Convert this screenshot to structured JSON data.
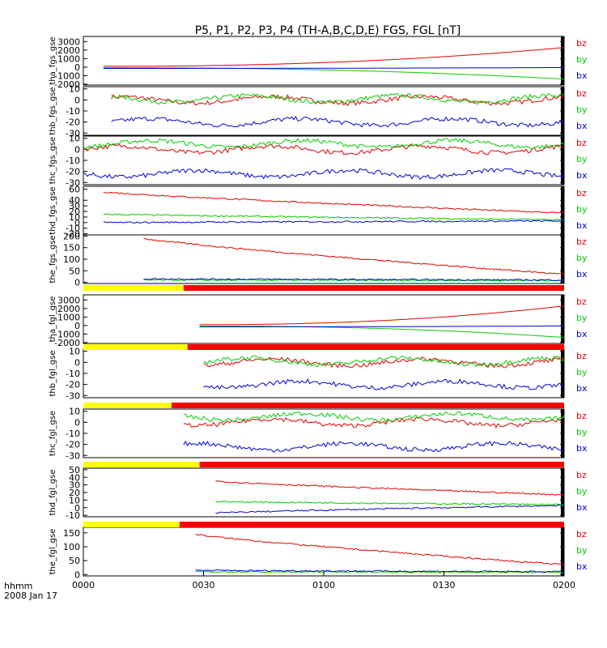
{
  "title": "P5, P1, P2, P3, P4 (TH-A,B,C,D,E) FGS, FGL [nT]",
  "date_label_top": "hhmm",
  "date_label_bottom": "2008 Jan 17",
  "x_tick_labels": [
    "0000",
    "0030",
    "0100",
    "0130",
    "0200"
  ],
  "colors": {
    "bz": "#dd0000",
    "by": "#00cc00",
    "bx": "#0000cc",
    "axis": "#000000",
    "bar_yellow": "#ffff00",
    "bar_red": "#ff0000"
  },
  "chart_data": [
    {
      "type": "line",
      "ylabel": "tha_fgs_gse",
      "yticks": [
        3000,
        2000,
        1000,
        0,
        -1000,
        -2000
      ],
      "ylim": [
        -2100,
        3600
      ],
      "xlim": [
        "00:00",
        "02:00"
      ],
      "x_start": "00:05",
      "series": [
        {
          "name": "bz",
          "values_start_end": [
            100,
            2300
          ]
        },
        {
          "name": "by",
          "values_start_end": [
            -60,
            -1400
          ]
        },
        {
          "name": "bx",
          "values_start_end": [
            -150,
            -50
          ]
        }
      ]
    },
    {
      "type": "line",
      "ylabel": "thb_fgs_gse",
      "yticks": [
        10,
        0,
        -10,
        -20,
        -30
      ],
      "ylim": [
        -32,
        12
      ],
      "xlim": [
        "00:00",
        "02:00"
      ],
      "x_start": "00:07",
      "series": [
        {
          "name": "bz",
          "level": 0
        },
        {
          "name": "by",
          "level": 1
        },
        {
          "name": "bx",
          "level": -20
        }
      ]
    },
    {
      "type": "line",
      "ylabel": "thc_fgs_gse",
      "yticks": [
        10,
        0,
        -10,
        -20,
        -30
      ],
      "ylim": [
        -32,
        12
      ],
      "xlim": [
        "00:00",
        "02:00"
      ],
      "x_start": "00:00",
      "series": [
        {
          "name": "bz",
          "level": 0
        },
        {
          "name": "by",
          "level": 5
        },
        {
          "name": "bx",
          "level": -22
        }
      ]
    },
    {
      "type": "line",
      "ylabel": "thd_fgs_gse",
      "yticks": [
        60,
        40,
        30,
        20,
        10,
        0,
        -10,
        -20
      ],
      "ylim": [
        -22,
        65
      ],
      "xlim": [
        "00:00",
        "02:00"
      ],
      "x_start": "00:05",
      "series": [
        {
          "name": "bz",
          "start": 55,
          "end": 17
        },
        {
          "name": "by",
          "start": 15,
          "end": 5
        },
        {
          "name": "bx",
          "start": 0,
          "end": 3
        }
      ]
    },
    {
      "type": "line",
      "ylabel": "the_fgs_gse",
      "yticks": [
        200,
        150,
        100,
        50,
        0
      ],
      "ylim": [
        -5,
        205
      ],
      "xlim": [
        "00:00",
        "02:00"
      ],
      "x_start": "00:15",
      "series": [
        {
          "name": "bz",
          "start": 190,
          "end": 35
        },
        {
          "name": "by",
          "start": 10,
          "end": 8
        },
        {
          "name": "bx",
          "start": 15,
          "end": 10
        }
      ]
    },
    {
      "type": "line",
      "ylabel": "tha_fgl_gse",
      "yticks": [
        3000,
        2000,
        1000,
        0,
        -1000,
        -2000
      ],
      "ylim": [
        -2100,
        3600
      ],
      "xlim": [
        "00:00",
        "02:00"
      ],
      "x_start": "00:29",
      "series": [
        {
          "name": "bz",
          "values_start_end": [
            100,
            2300
          ]
        },
        {
          "name": "by",
          "values_start_end": [
            -60,
            -1400
          ]
        },
        {
          "name": "bx",
          "values_start_end": [
            -150,
            -50
          ]
        }
      ]
    },
    {
      "type": "line",
      "ylabel": "thb_fgl_gse",
      "yticks": [
        10,
        0,
        -10,
        -20,
        -30
      ],
      "ylim": [
        -32,
        12
      ],
      "xlim": [
        "00:00",
        "02:00"
      ],
      "x_start": "00:30",
      "series": [
        {
          "name": "bz",
          "level": 0
        },
        {
          "name": "by",
          "level": 1
        },
        {
          "name": "bx",
          "level": -20
        }
      ]
    },
    {
      "type": "line",
      "ylabel": "thc_fgl_gse",
      "yticks": [
        10,
        0,
        -10,
        -20,
        -30
      ],
      "ylim": [
        -32,
        12
      ],
      "xlim": [
        "00:00",
        "02:00"
      ],
      "x_start": "00:25",
      "series": [
        {
          "name": "bz",
          "level": 0
        },
        {
          "name": "by",
          "level": 5
        },
        {
          "name": "bx",
          "level": -22
        }
      ]
    },
    {
      "type": "line",
      "ylabel": "thd_fgl_gse",
      "yticks": [
        50,
        40,
        30,
        20,
        10,
        0,
        -10
      ],
      "ylim": [
        -12,
        52
      ],
      "xlim": [
        "00:00",
        "02:00"
      ],
      "x_start": "00:33",
      "series": [
        {
          "name": "bz",
          "start": 35,
          "end": 17
        },
        {
          "name": "by",
          "start": 8,
          "end": 4
        },
        {
          "name": "bx",
          "start": -7,
          "end": 3
        }
      ]
    },
    {
      "type": "line",
      "ylabel": "the_fgl_gse",
      "yticks": [
        150,
        100,
        50,
        0
      ],
      "ylim": [
        -5,
        170
      ],
      "xlim": [
        "00:00",
        "02:00"
      ],
      "x_start": "00:28",
      "series": [
        {
          "name": "bz",
          "start": 145,
          "end": 35
        },
        {
          "name": "by",
          "start": 10,
          "end": 8
        },
        {
          "name": "bx",
          "start": 15,
          "end": 10
        }
      ]
    }
  ],
  "status_bars": [
    {
      "after_panel": 5,
      "yellow_until": "00:25"
    },
    {
      "after_panel": 6,
      "yellow_until": "00:26"
    },
    {
      "after_panel": 7,
      "yellow_until": "00:22"
    },
    {
      "after_panel": 8,
      "yellow_until": "00:29"
    },
    {
      "after_panel": 9,
      "yellow_until": "00:24"
    }
  ]
}
